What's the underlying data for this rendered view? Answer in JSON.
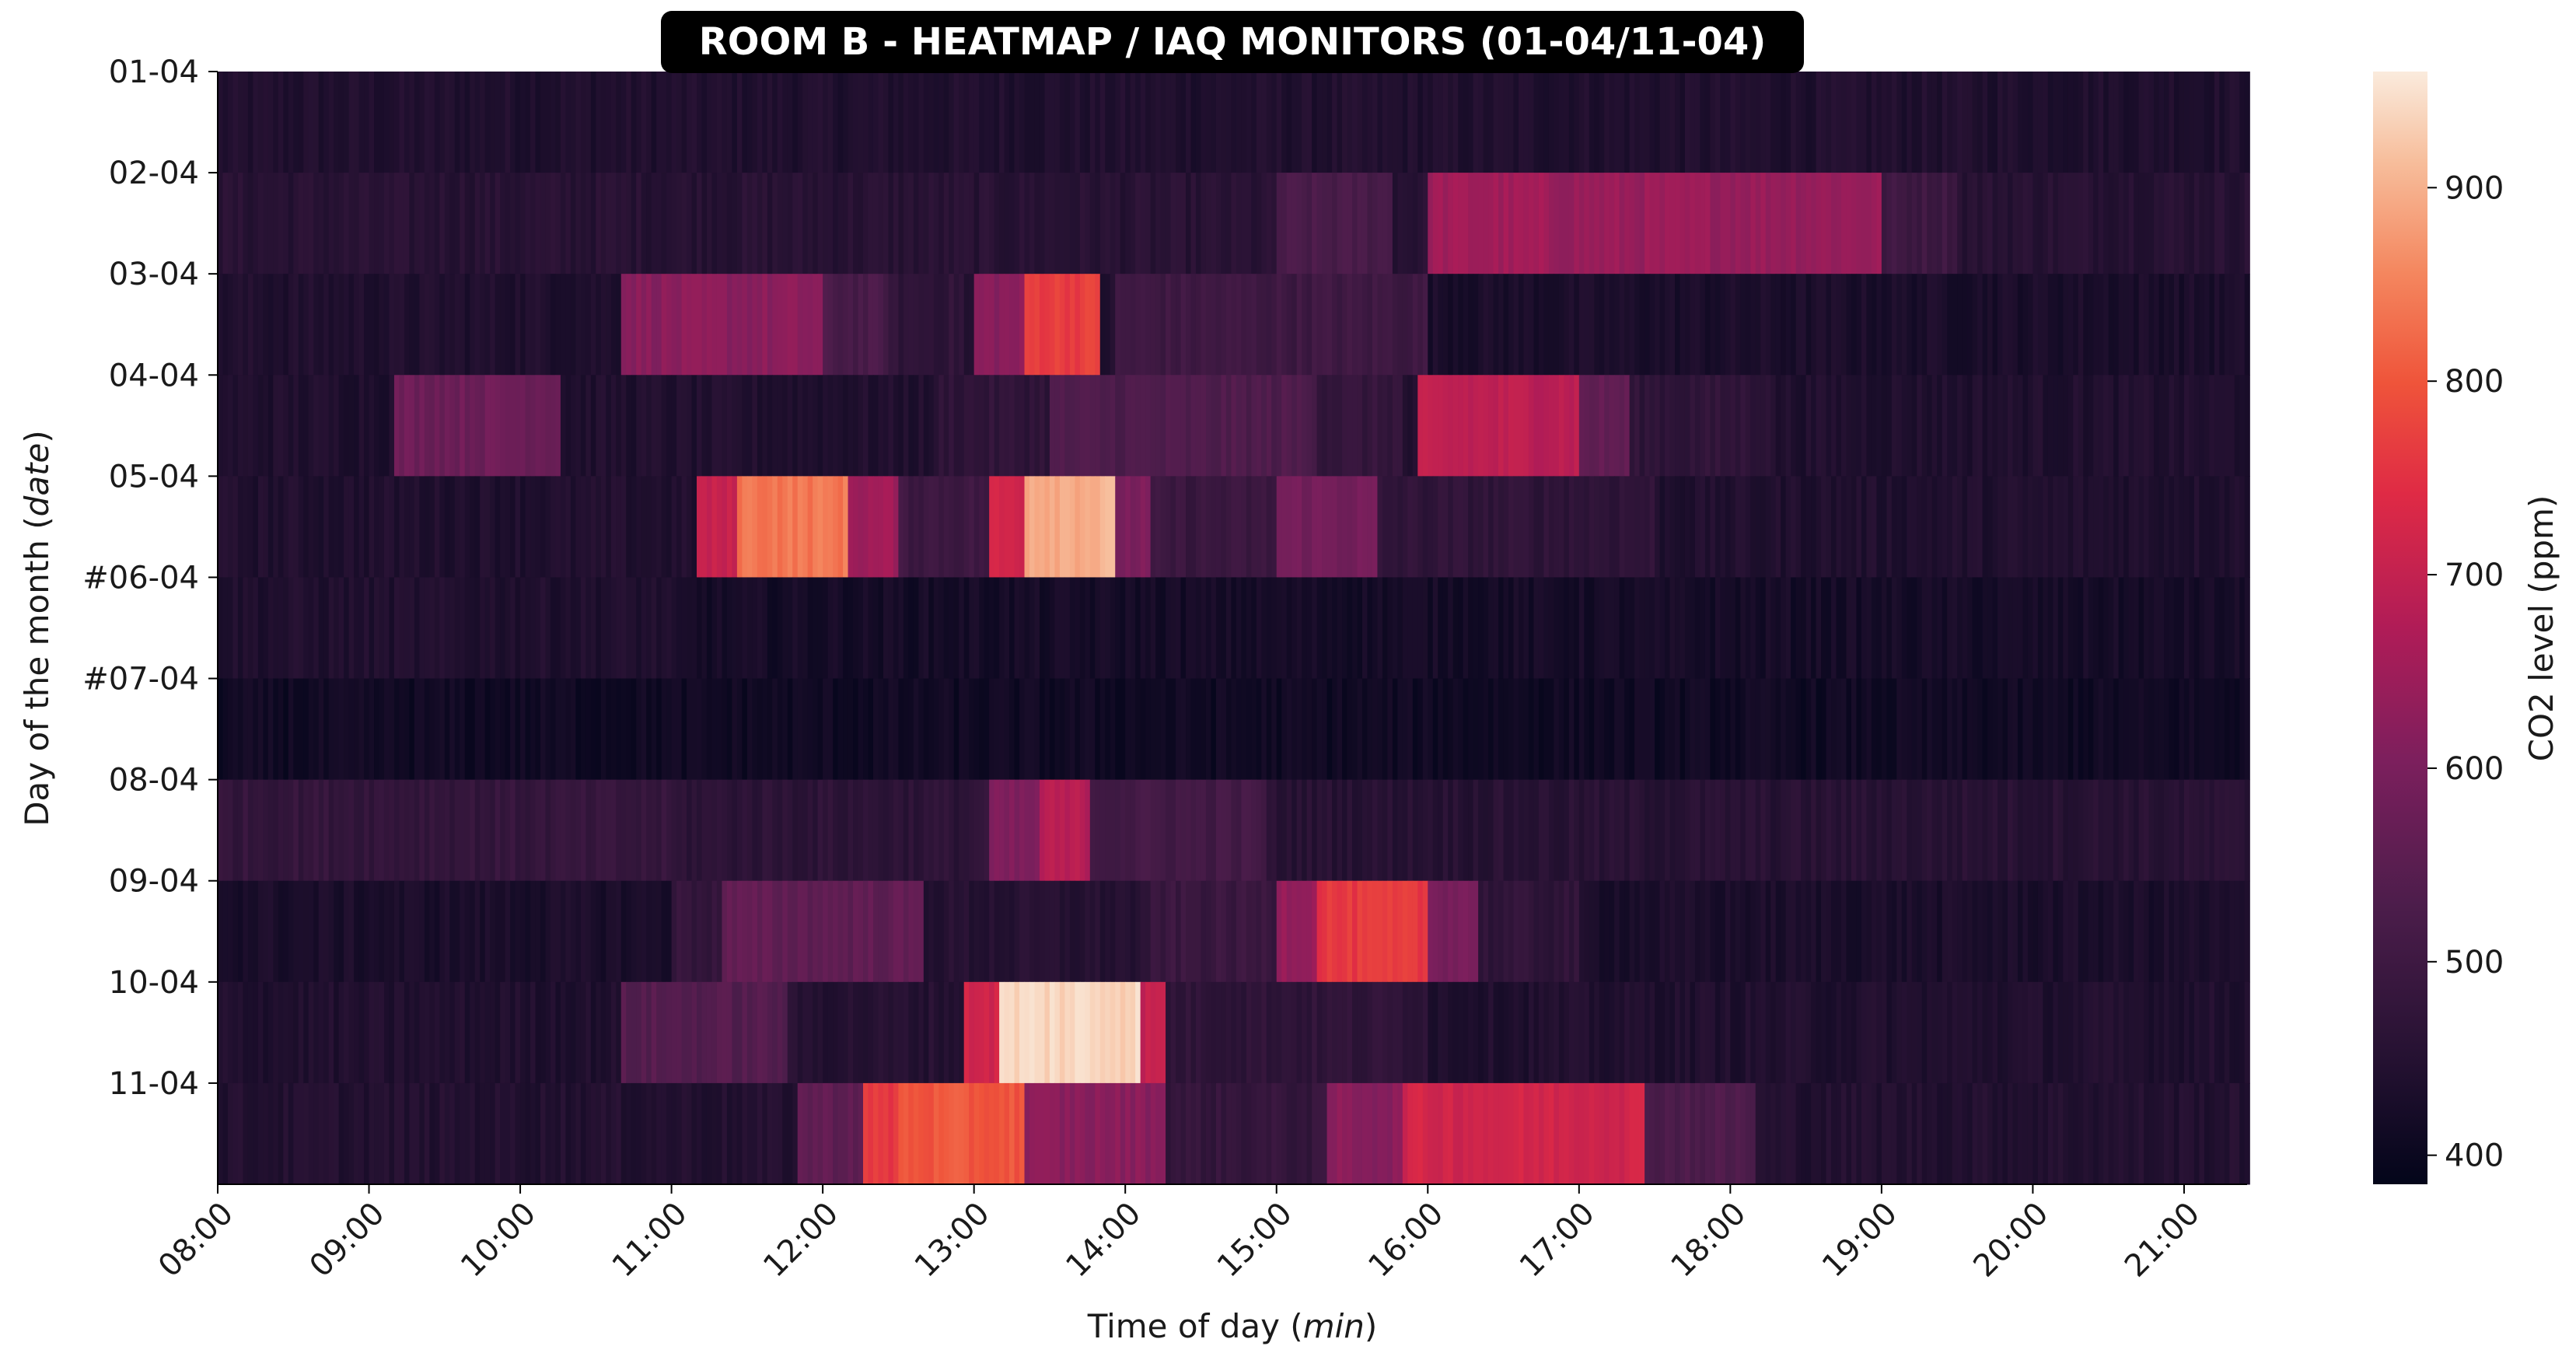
{
  "chart_data": {
    "type": "heatmap",
    "title": "ROOM B - HEATMAP / IAQ MONITORS (01-04/11-04)",
    "xlabel_prefix": "Time of day (",
    "xlabel_italic": "min",
    "xlabel_suffix": ")",
    "ylabel_prefix": "Day of the month (",
    "ylabel_italic": "date",
    "ylabel_suffix": ")",
    "colorbar_label": "CO2 level (ppm)",
    "colormap": "rocket",
    "value_range": [
      385,
      960
    ],
    "colorbar_ticks": [
      400,
      500,
      600,
      700,
      800,
      900
    ],
    "x_range": [
      "08:00",
      "21:25"
    ],
    "x_ticks": [
      "08:00",
      "09:00",
      "10:00",
      "11:00",
      "12:00",
      "13:00",
      "14:00",
      "15:00",
      "16:00",
      "17:00",
      "18:00",
      "19:00",
      "20:00",
      "21:00"
    ],
    "rows": [
      {
        "label": "01-04",
        "base": 440,
        "segments": []
      },
      {
        "label": "02-04",
        "base": 455,
        "segments": [
          {
            "start": "15:00",
            "end": "15:45",
            "value": 520
          },
          {
            "start": "16:00",
            "end": "16:45",
            "value": 650
          },
          {
            "start": "16:45",
            "end": "19:00",
            "value": 640
          },
          {
            "start": "19:00",
            "end": "19:30",
            "value": 500
          }
        ]
      },
      {
        "label": "03-04",
        "base": 440,
        "segments": [
          {
            "start": "10:40",
            "end": "12:00",
            "value": 620
          },
          {
            "start": "12:00",
            "end": "12:25",
            "value": 520
          },
          {
            "start": "12:25",
            "end": "12:55",
            "value": 470
          },
          {
            "start": "13:00",
            "end": "13:20",
            "value": 620
          },
          {
            "start": "13:20",
            "end": "13:50",
            "value": 770
          },
          {
            "start": "13:55",
            "end": "16:00",
            "value": 500
          },
          {
            "start": "16:00",
            "end": "21:25",
            "value": 430
          }
        ]
      },
      {
        "label": "04-04",
        "base": 440,
        "segments": [
          {
            "start": "09:10",
            "end": "10:15",
            "value": 580
          },
          {
            "start": "12:45",
            "end": "13:30",
            "value": 470
          },
          {
            "start": "13:30",
            "end": "15:15",
            "value": 530
          },
          {
            "start": "15:15",
            "end": "15:50",
            "value": 480
          },
          {
            "start": "15:55",
            "end": "17:00",
            "value": 690
          },
          {
            "start": "17:00",
            "end": "17:20",
            "value": 560
          },
          {
            "start": "17:20",
            "end": "18:15",
            "value": 470
          }
        ]
      },
      {
        "label": "05-04",
        "base": 440,
        "segments": [
          {
            "start": "11:10",
            "end": "11:25",
            "value": 700
          },
          {
            "start": "11:25",
            "end": "12:10",
            "value": 840
          },
          {
            "start": "12:10",
            "end": "12:30",
            "value": 650
          },
          {
            "start": "12:30",
            "end": "13:05",
            "value": 500
          },
          {
            "start": "13:05",
            "end": "13:20",
            "value": 720
          },
          {
            "start": "13:20",
            "end": "13:55",
            "value": 900
          },
          {
            "start": "13:55",
            "end": "14:10",
            "value": 600
          },
          {
            "start": "14:10",
            "end": "15:00",
            "value": 490
          },
          {
            "start": "15:00",
            "end": "15:40",
            "value": 590
          },
          {
            "start": "15:40",
            "end": "17:30",
            "value": 470
          }
        ]
      },
      {
        "label": "#06-04",
        "base": 420,
        "segments": [
          {
            "start": "08:00",
            "end": "11:00",
            "value": 440
          }
        ]
      },
      {
        "label": "#07-04",
        "base": 410,
        "segments": []
      },
      {
        "label": "08-04",
        "base": 480,
        "segments": [
          {
            "start": "11:00",
            "end": "13:00",
            "value": 465
          },
          {
            "start": "13:05",
            "end": "13:25",
            "value": 600
          },
          {
            "start": "13:25",
            "end": "13:45",
            "value": 680
          },
          {
            "start": "13:45",
            "end": "14:55",
            "value": 510
          },
          {
            "start": "14:55",
            "end": "21:25",
            "value": 455
          }
        ]
      },
      {
        "label": "09-04",
        "base": 430,
        "segments": [
          {
            "start": "11:00",
            "end": "11:20",
            "value": 480
          },
          {
            "start": "11:20",
            "end": "12:40",
            "value": 560
          },
          {
            "start": "12:40",
            "end": "14:10",
            "value": 450
          },
          {
            "start": "14:10",
            "end": "15:00",
            "value": 490
          },
          {
            "start": "15:00",
            "end": "15:15",
            "value": 640
          },
          {
            "start": "15:15",
            "end": "16:00",
            "value": 760
          },
          {
            "start": "16:00",
            "end": "16:20",
            "value": 600
          },
          {
            "start": "16:20",
            "end": "17:00",
            "value": 470
          }
        ]
      },
      {
        "label": "10-04",
        "base": 440,
        "segments": [
          {
            "start": "10:40",
            "end": "11:45",
            "value": 540
          },
          {
            "start": "11:45",
            "end": "12:55",
            "value": 450
          },
          {
            "start": "12:55",
            "end": "13:10",
            "value": 720
          },
          {
            "start": "13:10",
            "end": "14:05",
            "value": 940
          },
          {
            "start": "14:05",
            "end": "14:15",
            "value": 700
          },
          {
            "start": "14:15",
            "end": "16:00",
            "value": 470
          }
        ]
      },
      {
        "label": "11-04",
        "base": 445,
        "segments": [
          {
            "start": "11:50",
            "end": "12:15",
            "value": 560
          },
          {
            "start": "12:15",
            "end": "12:30",
            "value": 760
          },
          {
            "start": "12:30",
            "end": "13:20",
            "value": 800
          },
          {
            "start": "13:20",
            "end": "14:15",
            "value": 620
          },
          {
            "start": "14:15",
            "end": "15:20",
            "value": 480
          },
          {
            "start": "15:20",
            "end": "15:50",
            "value": 620
          },
          {
            "start": "15:50",
            "end": "17:25",
            "value": 720
          },
          {
            "start": "17:25",
            "end": "18:10",
            "value": 530
          }
        ]
      }
    ]
  }
}
